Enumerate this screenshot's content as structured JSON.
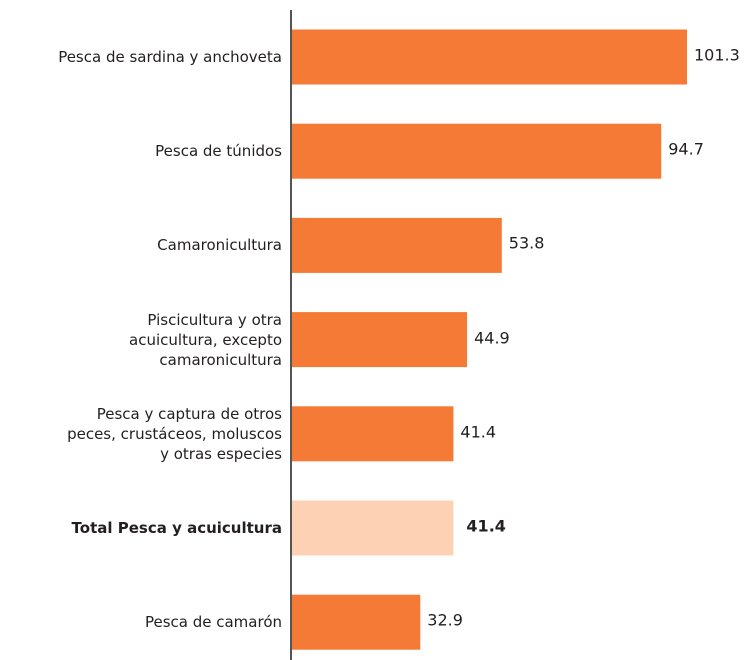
{
  "chart_data": {
    "type": "barh",
    "categories": [
      "Pesca de sardina y anchoveta",
      "Pesca de túnidos",
      "Camaronicultura",
      "Piscicultura y otra\nacuicultura, excepto\ncamaronicultura",
      "Pesca y captura de otros\npeces, crustáceos, moluscos\ny otras especies",
      "Total Pesca y acuicultura",
      "Pesca de camarón"
    ],
    "values": [
      101.3,
      94.7,
      53.8,
      44.9,
      41.4,
      41.4,
      32.9
    ],
    "colors": [
      "#f47a35",
      "#f47a35",
      "#f47a35",
      "#f47a35",
      "#f47a35",
      "#fdd1b3",
      "#f47a35"
    ],
    "highlight": 5
  }
}
